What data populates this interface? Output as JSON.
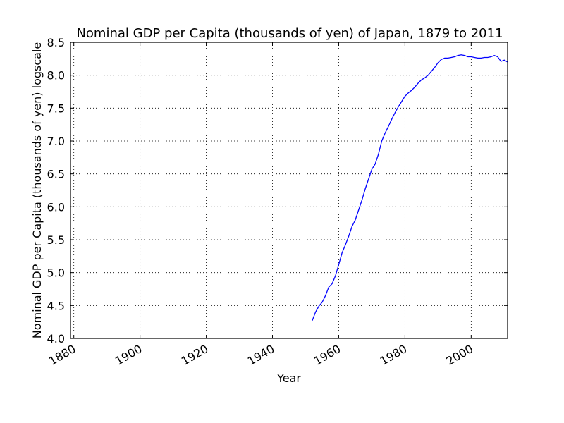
{
  "chart_data": {
    "type": "line",
    "title": "Nominal GDP per Capita (thousands of yen) of Japan, 1879 to 2011",
    "xlabel": "Year",
    "ylabel": "Nominal GDP per Capita (thousands of yen) logscale",
    "xlim": [
      1879,
      2011
    ],
    "ylim": [
      4.0,
      8.5
    ],
    "xticks": [
      1880,
      1900,
      1920,
      1940,
      1960,
      1980,
      2000
    ],
    "xtick_labels": [
      "1880",
      "1900",
      "1920",
      "1940",
      "1960",
      "1980",
      "2000"
    ],
    "yticks": [
      4.0,
      4.5,
      5.0,
      5.5,
      6.0,
      6.5,
      7.0,
      7.5,
      8.0,
      8.5
    ],
    "ytick_labels": [
      "4.0",
      "4.5",
      "5.0",
      "5.5",
      "6.0",
      "6.5",
      "7.0",
      "7.5",
      "8.0",
      "8.5"
    ],
    "grid": true,
    "series": [
      {
        "color": "#0000ff",
        "x": [
          1952,
          1953,
          1954,
          1955,
          1956,
          1957,
          1958,
          1959,
          1960,
          1961,
          1962,
          1963,
          1964,
          1965,
          1966,
          1967,
          1968,
          1969,
          1970,
          1971,
          1972,
          1973,
          1974,
          1975,
          1976,
          1977,
          1978,
          1979,
          1980,
          1981,
          1982,
          1983,
          1984,
          1985,
          1986,
          1987,
          1988,
          1989,
          1990,
          1991,
          1992,
          1993,
          1994,
          1995,
          1996,
          1997,
          1998,
          1999,
          2000,
          2001,
          2002,
          2003,
          2004,
          2005,
          2006,
          2007,
          2008,
          2009,
          2010,
          2011
        ],
        "y": [
          4.27,
          4.4,
          4.49,
          4.55,
          4.65,
          4.78,
          4.83,
          4.95,
          5.12,
          5.3,
          5.42,
          5.55,
          5.7,
          5.8,
          5.95,
          6.1,
          6.27,
          6.42,
          6.57,
          6.65,
          6.8,
          7.0,
          7.12,
          7.22,
          7.33,
          7.43,
          7.52,
          7.6,
          7.68,
          7.73,
          7.77,
          7.82,
          7.88,
          7.93,
          7.96,
          8.0,
          8.06,
          8.12,
          8.19,
          8.24,
          8.26,
          8.26,
          8.27,
          8.28,
          8.3,
          8.31,
          8.3,
          8.28,
          8.28,
          8.27,
          8.26,
          8.26,
          8.27,
          8.27,
          8.28,
          8.3,
          8.28,
          8.21,
          8.23,
          8.2
        ]
      }
    ]
  }
}
